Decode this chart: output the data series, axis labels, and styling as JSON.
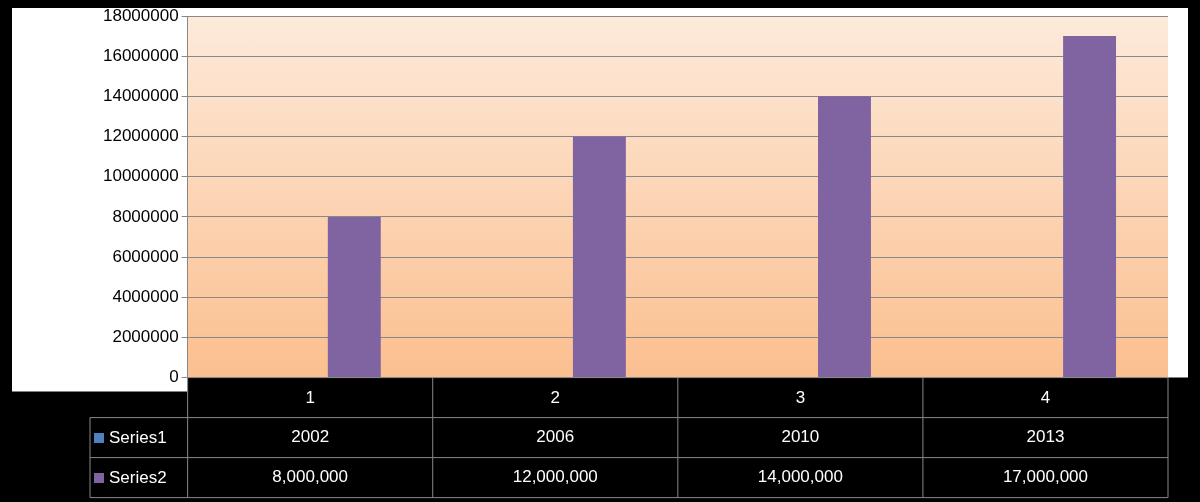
{
  "chart_data": {
    "type": "bar",
    "categories": [
      "1",
      "2",
      "3",
      "4"
    ],
    "series": [
      {
        "name": "Series1",
        "color": "#4f81bd",
        "values": [
          2002,
          2006,
          2010,
          2013
        ],
        "value_labels": [
          "2002",
          "2006",
          "2010",
          "2013"
        ]
      },
      {
        "name": "Series2",
        "color": "#8064a2",
        "values": [
          8000000,
          12000000,
          14000000,
          17000000
        ],
        "value_labels": [
          "8,000,000",
          "12,000,000",
          "14,000,000",
          "17,000,000"
        ]
      }
    ],
    "ylim": [
      0,
      18000000
    ],
    "yticks": [
      0,
      2000000,
      4000000,
      6000000,
      8000000,
      10000000,
      12000000,
      14000000,
      16000000,
      18000000
    ],
    "grid": "y",
    "legend": "bottom left"
  }
}
